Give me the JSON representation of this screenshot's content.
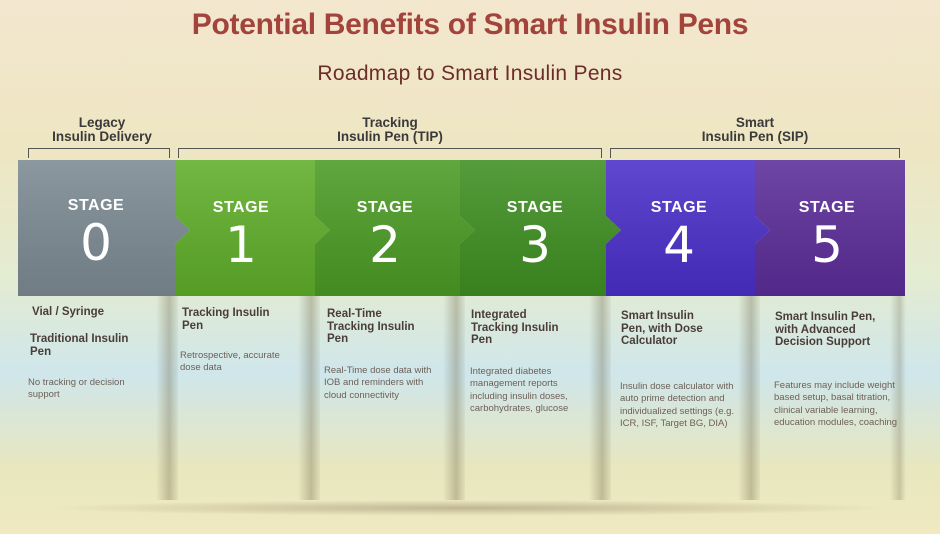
{
  "title": "Potential Benefits of Smart Insulin Pens",
  "subtitle": "Roadmap to Smart Insulin Pens",
  "groups": [
    {
      "line1": "Legacy",
      "line2": "Insulin Delivery"
    },
    {
      "line1": "Tracking",
      "line2": "Insulin Pen (TIP)"
    },
    {
      "line1": "Smart",
      "line2": "Insulin Pen (SIP)"
    }
  ],
  "stages": [
    {
      "word": "STAGE",
      "number": "0",
      "color": "#7c8a93",
      "title": "Vial / Syringe",
      "subtitle": "Traditional Insulin Pen",
      "desc": "No tracking or decision support"
    },
    {
      "word": "STAGE",
      "number": "1",
      "color": "#5fae2a",
      "title": "Tracking Insulin Pen",
      "subtitle": "",
      "desc": "Retrospective, accurate dose data"
    },
    {
      "word": "STAGE",
      "number": "2",
      "color": "#4b9b25",
      "title": "Real-Time Tracking Insulin Pen",
      "subtitle": "",
      "desc": "Real-Time dose data with IOB and reminders with cloud connectivity"
    },
    {
      "word": "STAGE",
      "number": "3",
      "color": "#3f8f22",
      "title": "Integrated Tracking Insulin Pen",
      "subtitle": "",
      "desc": "Integrated diabetes management reports including insulin doses, carbohydrates, glucose"
    },
    {
      "word": "STAGE",
      "number": "4",
      "color": "#4a2fc9",
      "title": "Smart Insulin Pen, with Dose Calculator",
      "subtitle": "",
      "desc": "Insulin dose calculator with auto prime detection and individualized settings (e.g. ICR, ISF, Target BG, DIA)"
    },
    {
      "word": "STAGE",
      "number": "5",
      "color": "#5b2d99",
      "title": "Smart Insulin Pen, with Advanced Decision Support",
      "subtitle": "",
      "desc": "Features may include weight based setup, basal titration, clinical variable learning, education modules, coaching"
    }
  ]
}
